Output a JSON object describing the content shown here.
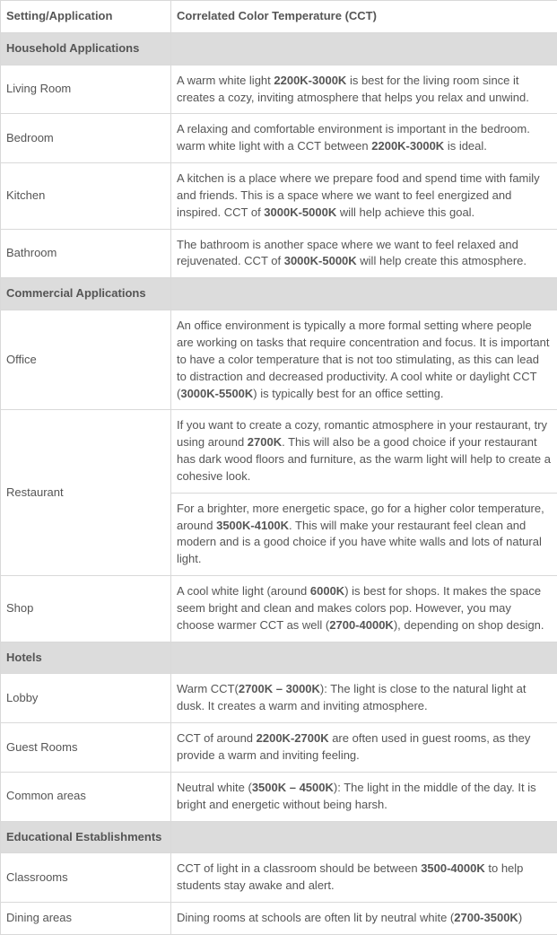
{
  "header": {
    "col1": "Setting/Application",
    "col2": "Correlated Color Temperature (CCT)"
  },
  "sections": [
    {
      "title": "Household Applications",
      "rows": [
        {
          "setting": "Living Room",
          "descs": [
            {
              "pre": "A warm white light ",
              "bold": "2200K-3000K",
              "post": " is best for the living room since it creates a cozy, inviting atmosphere that helps you relax and unwind."
            }
          ]
        },
        {
          "setting": "Bedroom",
          "descs": [
            {
              "pre": "A relaxing and comfortable environment is important in the bedroom. warm white light with a CCT between ",
              "bold": "2200K-3000K",
              "post": " is ideal."
            }
          ]
        },
        {
          "setting": "Kitchen",
          "descs": [
            {
              "pre": "A kitchen is a place where we prepare food and spend time with family and friends. This is a space where we want to feel energized and inspired. CCT of ",
              "bold": "3000K-5000K",
              "post": " will help achieve this goal."
            }
          ]
        },
        {
          "setting": "Bathroom",
          "descs": [
            {
              "pre": "The bathroom is another space where we want to feel relaxed and rejuvenated. CCT of ",
              "bold": "3000K-5000K",
              "post": " will help create this atmosphere."
            }
          ]
        }
      ]
    },
    {
      "title": "Commercial Applications",
      "rows": [
        {
          "setting": "Office",
          "descs": [
            {
              "pre": "An office environment is typically a more formal setting where people are working on tasks that require concentration and focus. It is important to have a color temperature that is not too stimulating, as this can lead to distraction and decreased productivity. A cool white or daylight CCT (",
              "bold": "3000K-5500K",
              "post": ") is typically best for an office setting."
            }
          ]
        },
        {
          "setting": "Restaurant",
          "descs": [
            {
              "pre": "If you want to create a cozy, romantic atmosphere in your restaurant, try using around ",
              "bold": "2700K",
              "post": ". This will also be a good choice if your restaurant has dark wood floors and furniture, as the warm light will help to create a cohesive look."
            },
            {
              "pre": "For a brighter, more energetic space, go for a higher color temperature, around ",
              "bold": "3500K-4100K",
              "post": ". This will make your restaurant feel clean and modern and is a good choice if you have white walls and lots of natural light."
            }
          ]
        },
        {
          "setting": "Shop",
          "descs": [
            {
              "parts": [
                {
                  "t": "A cool white light (around "
                },
                {
                  "t": "6000K",
                  "b": true
                },
                {
                  "t": ") is best for shops. It makes the space seem bright and clean and makes colors pop. However, you may choose warmer CCT as well ("
                },
                {
                  "t": "2700-4000K",
                  "b": true
                },
                {
                  "t": "), depending on shop design."
                }
              ]
            }
          ]
        }
      ]
    },
    {
      "title": "Hotels",
      "rows": [
        {
          "setting": "Lobby",
          "descs": [
            {
              "pre": "Warm CCT(",
              "bold": "2700K – 3000K",
              "post": "): The light is close to the natural light at dusk. It creates a warm and inviting atmosphere."
            }
          ]
        },
        {
          "setting": "Guest Rooms",
          "descs": [
            {
              "pre": "CCT of around ",
              "bold": "2200K-2700K",
              "post": " are often used in guest rooms, as they provide a warm and inviting feeling."
            }
          ]
        },
        {
          "setting": "Common areas",
          "descs": [
            {
              "pre": "Neutral white (",
              "bold": "3500K – 4500K",
              "post": "): The light in the middle of the day. It is bright and energetic without being harsh."
            }
          ]
        }
      ]
    },
    {
      "title": "Educational Establishments",
      "rows": [
        {
          "setting": "Classrooms",
          "descs": [
            {
              "pre": "CCT of light in a classroom should be between ",
              "bold": "3500-4000K",
              "post": " to help students stay awake and alert."
            }
          ]
        },
        {
          "setting": "Dining areas",
          "descs": [
            {
              "pre": "Dining rooms at schools are often lit by neutral white (",
              "bold": "2700-3500K",
              "post": ")"
            }
          ]
        }
      ]
    }
  ]
}
